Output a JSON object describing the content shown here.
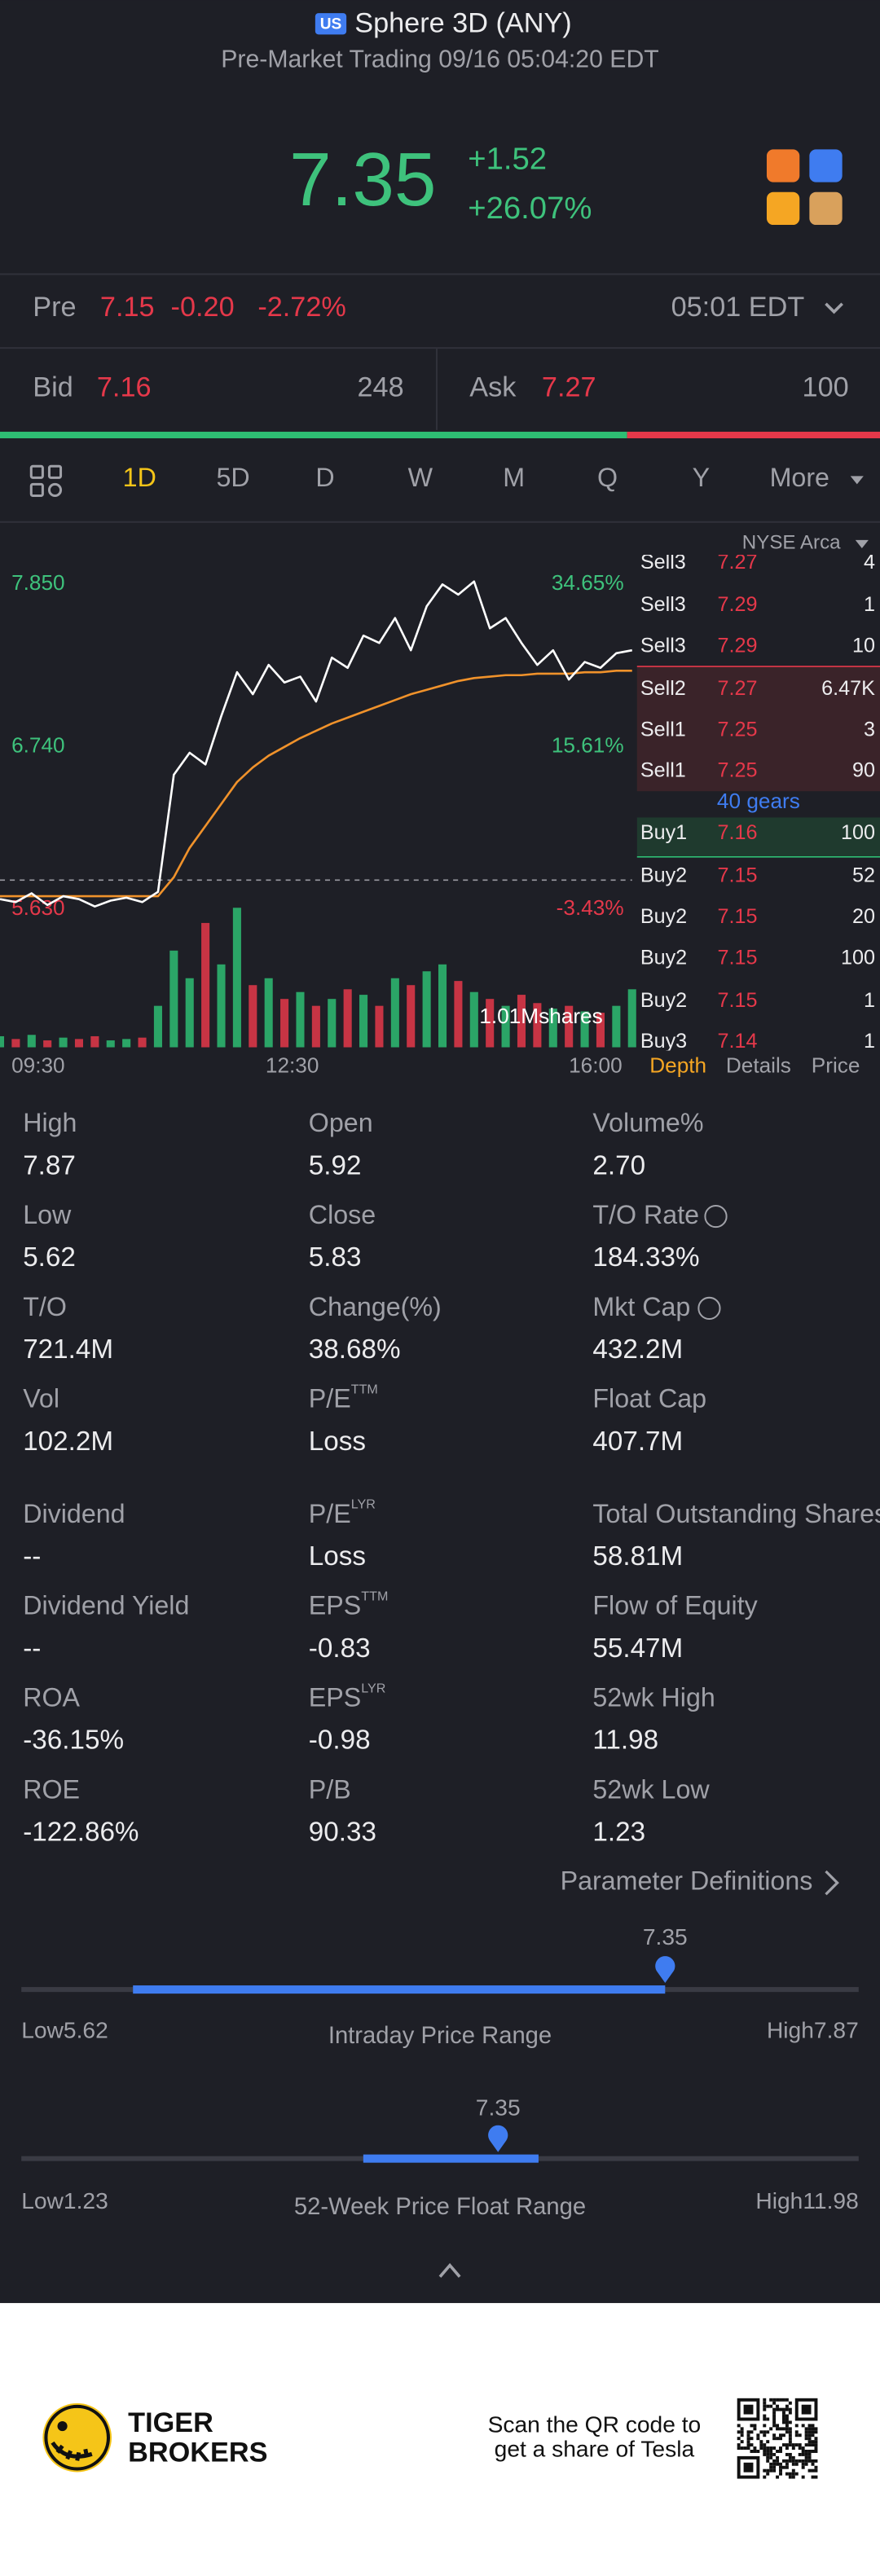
{
  "header": {
    "market_badge": "US",
    "title": "Sphere 3D (ANY)",
    "subtitle": "Pre-Market Trading 09/16 05:04:20 EDT"
  },
  "quote": {
    "price": "7.35",
    "change": "+1.52",
    "change_pct": "+26.07%"
  },
  "pre_market": {
    "label": "Pre",
    "price": "7.15",
    "change": "-0.20",
    "change_pct": "-2.72%",
    "time": "05:01 EDT"
  },
  "bid_ask": {
    "bid_label": "Bid",
    "bid": "7.16",
    "bid_size": 248,
    "ask_label": "Ask",
    "ask": "7.27",
    "ask_size": 100
  },
  "tabs": [
    "1D",
    "5D",
    "D",
    "W",
    "M",
    "Q",
    "Y",
    "More"
  ],
  "chart_data": {
    "type": "line",
    "xticks": [
      "09:30",
      "12:30",
      "16:00"
    ],
    "ylim": [
      5.63,
      7.85
    ],
    "yticks": [
      {
        "value": 7.85,
        "label": "7.850"
      },
      {
        "value": 6.74,
        "label": "6.740"
      },
      {
        "value": 5.63,
        "label": "5.630"
      }
    ],
    "y2lim": [
      -3.43,
      34.65
    ],
    "y2ticks": [
      {
        "value": 34.65,
        "label": "34.65%"
      },
      {
        "value": 15.61,
        "label": "15.61%"
      },
      {
        "value": -3.43,
        "label": "-3.43%"
      }
    ],
    "prev_close": 5.83,
    "series": [
      {
        "color": "#ffffff",
        "values": [
          5.7,
          5.68,
          5.74,
          5.66,
          5.72,
          5.7,
          5.65,
          5.69,
          5.71,
          5.68,
          5.75,
          6.55,
          6.7,
          6.62,
          6.95,
          7.25,
          7.1,
          7.3,
          7.18,
          7.22,
          7.05,
          7.35,
          7.28,
          7.5,
          7.45,
          7.62,
          7.4,
          7.7,
          7.85,
          7.78,
          7.87,
          7.55,
          7.62,
          7.45,
          7.3,
          7.4,
          7.2,
          7.32,
          7.28,
          7.38,
          7.4
        ]
      },
      {
        "color": "#f0922b",
        "values": [
          5.72,
          5.72,
          5.72,
          5.72,
          5.72,
          5.72,
          5.72,
          5.72,
          5.72,
          5.72,
          5.72,
          5.85,
          6.05,
          6.2,
          6.35,
          6.5,
          6.6,
          6.68,
          6.74,
          6.8,
          6.85,
          6.9,
          6.94,
          6.98,
          7.02,
          7.06,
          7.1,
          7.13,
          7.16,
          7.19,
          7.21,
          7.22,
          7.23,
          7.23,
          7.24,
          7.24,
          7.24,
          7.25,
          7.25,
          7.26,
          7.26
        ]
      }
    ],
    "volume": {
      "max": {
        "value": 1010000,
        "label": "1.01Mshares"
      },
      "colors": [
        "#2ebd73",
        "#e5384a"
      ],
      "values": [
        80000,
        60000,
        90000,
        50000,
        70000,
        60000,
        80000,
        50000,
        60000,
        70000,
        300000,
        700000,
        500000,
        900000,
        600000,
        1010000,
        450000,
        500000,
        350000,
        400000,
        300000,
        350000,
        420000,
        380000,
        300000,
        500000,
        450000,
        550000,
        600000,
        480000,
        400000,
        350000,
        300000,
        380000,
        320000,
        280000,
        300000,
        260000,
        250000,
        300000,
        420000
      ]
    }
  },
  "order_book": {
    "exchange": "NYSE Arca",
    "rows": [
      [
        "Sell3",
        "7.27",
        "4"
      ],
      [
        "Sell3",
        "7.29",
        "1"
      ],
      [
        "Sell3",
        "7.29",
        "10"
      ],
      [
        "Sell2",
        "7.27",
        "6.47K"
      ],
      [
        "Sell1",
        "7.25",
        "3"
      ],
      [
        "Sell1",
        "7.25",
        "90"
      ],
      [
        "Buy1",
        "7.16",
        "100"
      ],
      [
        "Buy2",
        "7.15",
        "52"
      ],
      [
        "Buy2",
        "7.15",
        "20"
      ],
      [
        "Buy2",
        "7.15",
        "100"
      ],
      [
        "Buy2",
        "7.15",
        "1"
      ],
      [
        "Buy3",
        "7.14",
        "1"
      ]
    ],
    "gears": "40 gears",
    "tabs": [
      "Depth",
      "Details",
      "Price"
    ]
  },
  "stats": [
    [
      {
        "label": "High",
        "value": "7.87"
      },
      {
        "label": "Open",
        "value": "5.92"
      },
      {
        "label": "Volume%",
        "value": "2.70"
      }
    ],
    [
      {
        "label": "Low",
        "value": "5.62"
      },
      {
        "label": "Close",
        "value": "5.83"
      },
      {
        "label": "T/O Rate",
        "value": "184.33%"
      }
    ],
    [
      {
        "label": "T/O",
        "value": "721.4M"
      },
      {
        "label": "Change(%)",
        "value": "38.68%"
      },
      {
        "label": "Mkt Cap",
        "value": "432.2M"
      }
    ],
    [
      {
        "label": "Vol",
        "value": "102.2M"
      },
      {
        "label": "P/E",
        "sup": "TTM",
        "value": "Loss"
      },
      {
        "label": "Float Cap",
        "value": "407.7M"
      }
    ],
    [
      {
        "label": "Dividend",
        "value": "--"
      },
      {
        "label": "P/E",
        "sup": "LYR",
        "value": "Loss"
      },
      {
        "label": "Total Outstanding Shares",
        "value": "58.81M"
      }
    ],
    [
      {
        "label": "Dividend Yield",
        "value": "--"
      },
      {
        "label": "EPS",
        "sup": "TTM",
        "value": "-0.83"
      },
      {
        "label": "Flow of Equity",
        "value": "55.47M"
      }
    ],
    [
      {
        "label": "ROA",
        "value": "-36.15%"
      },
      {
        "label": "EPS",
        "sup": "LYR",
        "value": "-0.98"
      },
      {
        "label": "52wk High",
        "value": "11.98"
      }
    ],
    [
      {
        "label": "ROE",
        "value": "-122.86%"
      },
      {
        "label": "P/B",
        "value": "90.33"
      },
      {
        "label": "52wk Low",
        "value": "1.23"
      }
    ]
  ],
  "param_link": "Parameter Definitions",
  "ranges": [
    {
      "title": "Intraday Price Range",
      "current": 7.35,
      "low_label": "Low",
      "low": 5.62,
      "high_label": "High",
      "high": 7.87,
      "band": [
        5.92,
        7.35
      ]
    },
    {
      "title": "52-Week Price Float Range",
      "current": 7.35,
      "low_label": "Low",
      "low": 1.23,
      "high_label": "High",
      "high": 11.98,
      "band": [
        5.62,
        7.87
      ]
    }
  ],
  "footer": {
    "brand": [
      "TIGER",
      "BROKERS"
    ],
    "qr_text": [
      "Scan the QR code to",
      "get a share of Tesla"
    ]
  }
}
